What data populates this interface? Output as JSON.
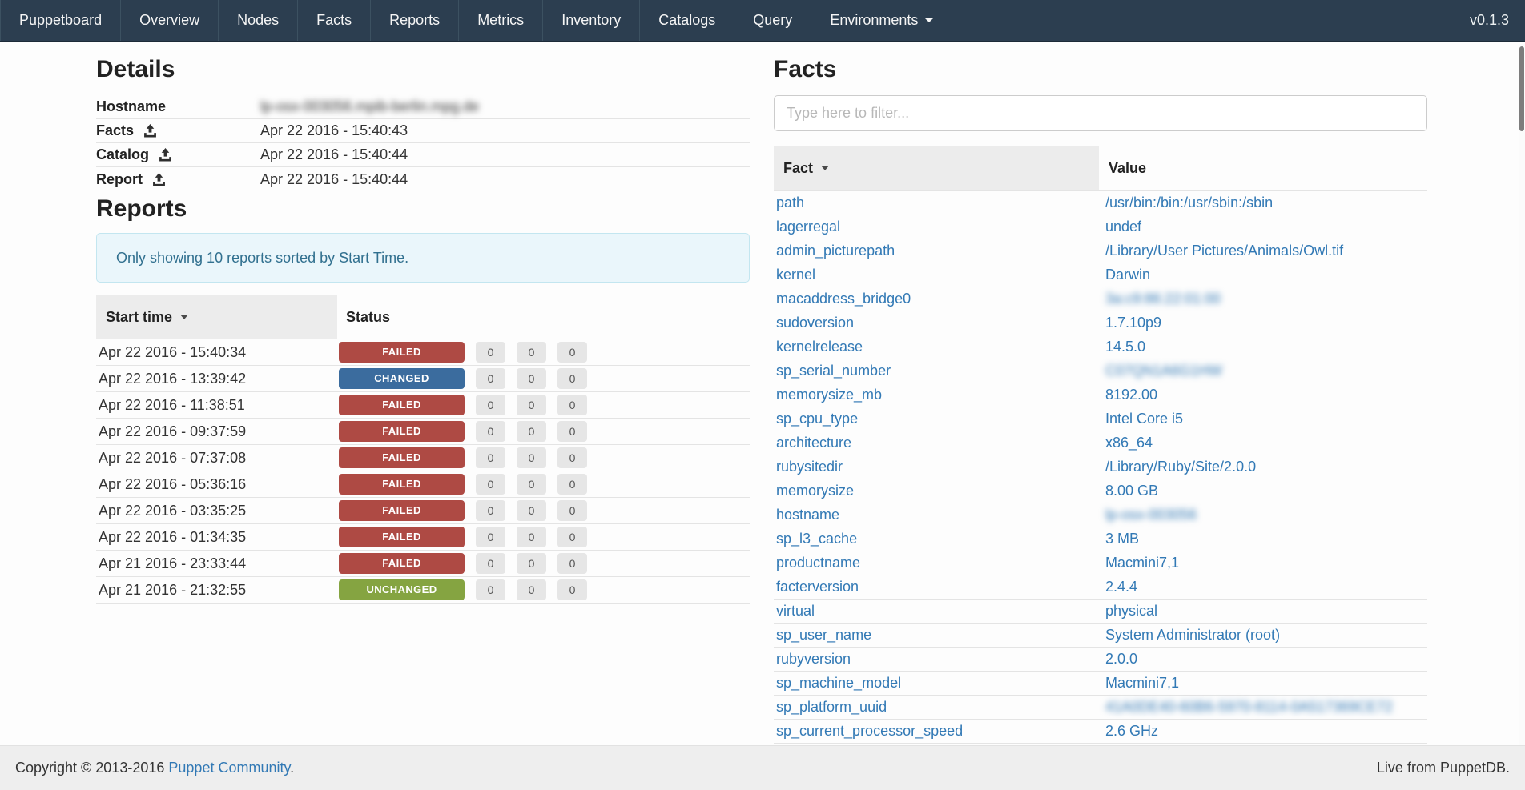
{
  "navbar": {
    "brand": "Puppetboard",
    "items": [
      "Overview",
      "Nodes",
      "Facts",
      "Reports",
      "Metrics",
      "Inventory",
      "Catalogs",
      "Query"
    ],
    "environments_label": "Environments",
    "version": "v0.1.3"
  },
  "details": {
    "title": "Details",
    "rows": [
      {
        "label": "Hostname",
        "value": "lp-osx-003056.mpib-berlin.mpg.de",
        "blurred": true,
        "icon": false
      },
      {
        "label": "Facts",
        "value": "Apr 22 2016 - 15:40:43",
        "blurred": false,
        "icon": true
      },
      {
        "label": "Catalog",
        "value": "Apr 22 2016 - 15:40:44",
        "blurred": false,
        "icon": true
      },
      {
        "label": "Report",
        "value": "Apr 22 2016 - 15:40:44",
        "blurred": false,
        "icon": true
      }
    ]
  },
  "reports": {
    "title": "Reports",
    "alert": "Only showing 10 reports sorted by Start Time.",
    "columns": {
      "start_time": "Start time",
      "status": "Status"
    },
    "rows": [
      {
        "start_time": "Apr 22 2016 - 15:40:34",
        "status": "FAILED",
        "counts": [
          "0",
          "0",
          "0"
        ]
      },
      {
        "start_time": "Apr 22 2016 - 13:39:42",
        "status": "CHANGED",
        "counts": [
          "0",
          "0",
          "0"
        ]
      },
      {
        "start_time": "Apr 22 2016 - 11:38:51",
        "status": "FAILED",
        "counts": [
          "0",
          "0",
          "0"
        ]
      },
      {
        "start_time": "Apr 22 2016 - 09:37:59",
        "status": "FAILED",
        "counts": [
          "0",
          "0",
          "0"
        ]
      },
      {
        "start_time": "Apr 22 2016 - 07:37:08",
        "status": "FAILED",
        "counts": [
          "0",
          "0",
          "0"
        ]
      },
      {
        "start_time": "Apr 22 2016 - 05:36:16",
        "status": "FAILED",
        "counts": [
          "0",
          "0",
          "0"
        ]
      },
      {
        "start_time": "Apr 22 2016 - 03:35:25",
        "status": "FAILED",
        "counts": [
          "0",
          "0",
          "0"
        ]
      },
      {
        "start_time": "Apr 22 2016 - 01:34:35",
        "status": "FAILED",
        "counts": [
          "0",
          "0",
          "0"
        ]
      },
      {
        "start_time": "Apr 21 2016 - 23:33:44",
        "status": "FAILED",
        "counts": [
          "0",
          "0",
          "0"
        ]
      },
      {
        "start_time": "Apr 21 2016 - 21:32:55",
        "status": "UNCHANGED",
        "counts": [
          "0",
          "0",
          "0"
        ]
      }
    ]
  },
  "facts": {
    "title": "Facts",
    "filter_placeholder": "Type here to filter...",
    "columns": {
      "fact": "Fact",
      "value": "Value"
    },
    "rows": [
      {
        "fact": "path",
        "value": "/usr/bin:/bin:/usr/sbin:/sbin",
        "blurred": false
      },
      {
        "fact": "lagerregal",
        "value": "undef",
        "blurred": false
      },
      {
        "fact": "admin_picturepath",
        "value": "/Library/User Pictures/Animals/Owl.tif",
        "blurred": false
      },
      {
        "fact": "kernel",
        "value": "Darwin",
        "blurred": false
      },
      {
        "fact": "macaddress_bridge0",
        "value": "3a:c9:86:22:01:00",
        "blurred": true
      },
      {
        "fact": "sudoversion",
        "value": "1.7.10p9",
        "blurred": false
      },
      {
        "fact": "kernelrelease",
        "value": "14.5.0",
        "blurred": false
      },
      {
        "fact": "sp_serial_number",
        "value": "C07QN1A6G1HW",
        "blurred": true
      },
      {
        "fact": "memorysize_mb",
        "value": "8192.00",
        "blurred": false
      },
      {
        "fact": "sp_cpu_type",
        "value": "Intel Core i5",
        "blurred": false
      },
      {
        "fact": "architecture",
        "value": "x86_64",
        "blurred": false
      },
      {
        "fact": "rubysitedir",
        "value": "/Library/Ruby/Site/2.0.0",
        "blurred": false
      },
      {
        "fact": "memorysize",
        "value": "8.00 GB",
        "blurred": false
      },
      {
        "fact": "hostname",
        "value": "lp-osx-003056",
        "blurred": true
      },
      {
        "fact": "sp_l3_cache",
        "value": "3 MB",
        "blurred": false
      },
      {
        "fact": "productname",
        "value": "Macmini7,1",
        "blurred": false
      },
      {
        "fact": "facterversion",
        "value": "2.4.4",
        "blurred": false
      },
      {
        "fact": "virtual",
        "value": "physical",
        "blurred": false
      },
      {
        "fact": "sp_user_name",
        "value": "System Administrator (root)",
        "blurred": false
      },
      {
        "fact": "rubyversion",
        "value": "2.0.0",
        "blurred": false
      },
      {
        "fact": "sp_machine_model",
        "value": "Macmini7,1",
        "blurred": false
      },
      {
        "fact": "sp_platform_uuid",
        "value": "41A0DE40-60B6-5970-8114-0A517369CE72",
        "blurred": true
      },
      {
        "fact": "sp_current_processor_speed",
        "value": "2.6 GHz",
        "blurred": false
      }
    ]
  },
  "footer": {
    "copyright": "Copyright © 2013-2016",
    "community_link": "Puppet Community",
    "period": ".",
    "live": "Live from PuppetDB."
  },
  "colors": {
    "navbar_bg": "#2c3e50",
    "link_blue": "#3279b5",
    "alert_text": "#31708f",
    "status": {
      "FAILED": "#ae4a44",
      "CHANGED": "#3b6c9e",
      "UNCHANGED": "#85a441"
    },
    "count_pill_bg": "#e6e6e6"
  }
}
